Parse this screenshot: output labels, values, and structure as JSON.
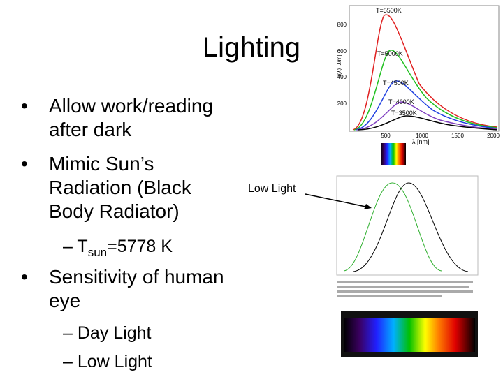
{
  "slide": {
    "title": "Lighting",
    "bullets": [
      {
        "lines": [
          "Allow work/reading",
          "after dark"
        ]
      },
      {
        "lines": [
          "Mimic Sun’s",
          "Radiation (Black",
          "Body Radiator)"
        ]
      },
      {
        "lines": [
          "Sensitivity of human",
          "eye"
        ]
      }
    ],
    "sub_bullets": [
      {
        "main": "T",
        "sub": "sun",
        "rest": "=5778 K"
      },
      {
        "main": "Day Light"
      },
      {
        "main": "Low Light"
      }
    ],
    "annotation": "Low Light",
    "blackbody_plot": {
      "curve_labels": [
        "T=5500K",
        "T=5000K",
        "T=4500K",
        "T=4000K",
        "T=3500K"
      ],
      "yticks": [
        "200",
        "400",
        "600",
        "800"
      ],
      "xticks": [
        "500",
        "1000",
        "1500",
        "2000"
      ],
      "xlabel": "λ [nm]",
      "ylabel": "u(λ) [J/m]"
    }
  }
}
